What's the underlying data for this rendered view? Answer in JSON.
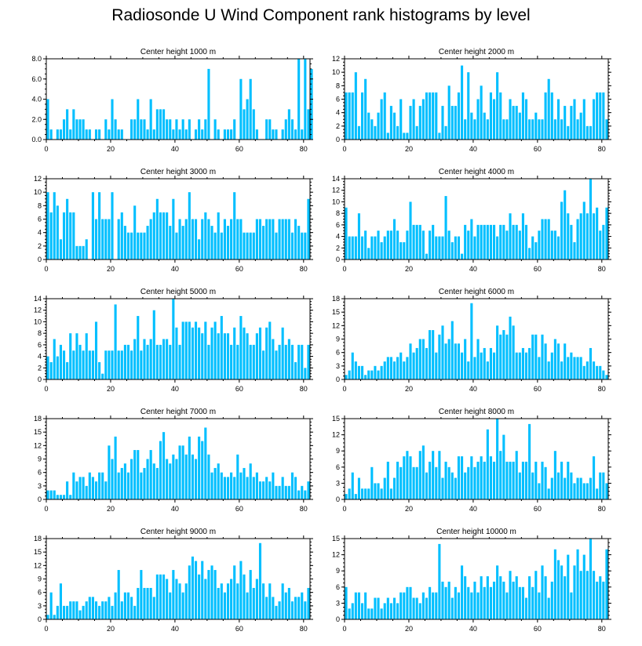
{
  "title": "Radiosonde U Wind Component rank histograms by level",
  "colors": {
    "bar": "#00BFFF",
    "bar_edge": "#ffffff",
    "axis": "#000000"
  },
  "chart_data": [
    {
      "type": "bar",
      "title": "Center height 1000 m",
      "xlabel": "",
      "ylabel": "",
      "xlim": [
        0,
        82
      ],
      "ylim": [
        0,
        8
      ],
      "x_ticks": [
        0,
        20,
        40,
        60,
        80
      ],
      "y_ticks": [
        0,
        2,
        4,
        6,
        8
      ],
      "y_tick_labels": [
        "0.0",
        "2.0",
        "4.0",
        "6.0",
        "8.0"
      ],
      "values": [
        4,
        1,
        0,
        1,
        1,
        2,
        3,
        1,
        3,
        2,
        2,
        2,
        1,
        1,
        0,
        1,
        1,
        0,
        2,
        1,
        4,
        2,
        1,
        1,
        0,
        0,
        2,
        2,
        4,
        2,
        2,
        1,
        4,
        1,
        3,
        3,
        3,
        2,
        2,
        1,
        2,
        1,
        2,
        1,
        2,
        0,
        1,
        2,
        1,
        2,
        7,
        0,
        2,
        1,
        0,
        1,
        1,
        1,
        2,
        0,
        6,
        3,
        4,
        6,
        3,
        1,
        0,
        0,
        2,
        2,
        1,
        1,
        0,
        1,
        2,
        3,
        2,
        1,
        8,
        1,
        8,
        3,
        7
      ]
    },
    {
      "type": "bar",
      "title": "Center height 2000 m",
      "xlabel": "",
      "ylabel": "",
      "xlim": [
        0,
        82
      ],
      "ylim": [
        0,
        12
      ],
      "x_ticks": [
        0,
        20,
        40,
        60,
        80
      ],
      "y_ticks": [
        0,
        2,
        4,
        6,
        8,
        10,
        12
      ],
      "y_tick_labels": [
        "0",
        "2",
        "4",
        "6",
        "8",
        "10",
        "12"
      ],
      "values": [
        7,
        7,
        7,
        10,
        2,
        7,
        9,
        4,
        3,
        2,
        4,
        6,
        7,
        1,
        5,
        4,
        2,
        6,
        1,
        1,
        5,
        6,
        2,
        5,
        6,
        7,
        7,
        7,
        7,
        1,
        5,
        2,
        8,
        5,
        5,
        7,
        11,
        3,
        10,
        4,
        3,
        6,
        8,
        4,
        3,
        7,
        6,
        10,
        7,
        3,
        3,
        6,
        5,
        5,
        4,
        7,
        6,
        3,
        3,
        4,
        3,
        3,
        7,
        9,
        7,
        3,
        6,
        3,
        5,
        2,
        5,
        6,
        3,
        4,
        6,
        2,
        2,
        6,
        7,
        7,
        7,
        3
      ]
    },
    {
      "type": "bar",
      "title": "Center height 3000 m",
      "xlabel": "",
      "ylabel": "",
      "xlim": [
        0,
        82
      ],
      "ylim": [
        0,
        12
      ],
      "x_ticks": [
        0,
        20,
        40,
        60,
        80
      ],
      "y_ticks": [
        0,
        2,
        4,
        6,
        8,
        10,
        12
      ],
      "y_tick_labels": [
        "0",
        "2",
        "4",
        "6",
        "8",
        "10",
        "12"
      ],
      "values": [
        10,
        7,
        10,
        8,
        3,
        7,
        9,
        7,
        7,
        2,
        2,
        2,
        3,
        0,
        10,
        6,
        10,
        6,
        6,
        6,
        10,
        0,
        6,
        7,
        5,
        4,
        4,
        8,
        4,
        4,
        4,
        5,
        6,
        7,
        9,
        7,
        7,
        7,
        5,
        9,
        4,
        6,
        5,
        6,
        10,
        6,
        6,
        3,
        6,
        7,
        6,
        5,
        4,
        7,
        4,
        6,
        5,
        6,
        10,
        6,
        6,
        4,
        4,
        4,
        4,
        6,
        6,
        5,
        6,
        6,
        6,
        4,
        6,
        6,
        6,
        6,
        4,
        6,
        5,
        4,
        4,
        9
      ]
    },
    {
      "type": "bar",
      "title": "Center height 4000 m",
      "xlabel": "",
      "ylabel": "",
      "xlim": [
        0,
        82
      ],
      "ylim": [
        0,
        14
      ],
      "x_ticks": [
        0,
        20,
        40,
        60,
        80
      ],
      "y_ticks": [
        0,
        2,
        4,
        6,
        8,
        10,
        12,
        14
      ],
      "y_tick_labels": [
        "0",
        "2",
        "4",
        "6",
        "8",
        "10",
        "12",
        "14"
      ],
      "values": [
        9,
        4,
        4,
        4,
        8,
        4,
        5,
        2,
        4,
        4,
        5,
        3,
        4,
        5,
        5,
        7,
        5,
        3,
        3,
        5,
        10,
        6,
        6,
        6,
        5,
        1,
        5,
        6,
        4,
        4,
        4,
        11,
        5,
        3,
        4,
        4,
        1,
        6,
        5,
        7,
        4,
        6,
        6,
        6,
        6,
        6,
        6,
        4,
        6,
        6,
        5,
        8,
        6,
        6,
        5,
        8,
        6,
        2,
        4,
        3,
        5,
        7,
        7,
        7,
        5,
        5,
        4,
        10,
        12,
        8,
        6,
        3,
        7,
        8,
        10,
        8,
        14,
        8,
        9,
        5,
        6,
        9
      ]
    },
    {
      "type": "bar",
      "title": "Center height 5000 m",
      "xlabel": "",
      "ylabel": "",
      "xlim": [
        0,
        82
      ],
      "ylim": [
        0,
        14
      ],
      "x_ticks": [
        0,
        20,
        40,
        60,
        80
      ],
      "y_ticks": [
        0,
        2,
        4,
        6,
        8,
        10,
        12,
        14
      ],
      "y_tick_labels": [
        "0",
        "2",
        "4",
        "6",
        "8",
        "10",
        "12",
        "14"
      ],
      "values": [
        4,
        3,
        7,
        4,
        6,
        5,
        3,
        8,
        5,
        8,
        6,
        5,
        8,
        5,
        5,
        10,
        3,
        1,
        5,
        5,
        5,
        13,
        5,
        5,
        6,
        6,
        5,
        7,
        11,
        5,
        7,
        6,
        7,
        12,
        6,
        6,
        7,
        7,
        6,
        14,
        9,
        6,
        10,
        10,
        10,
        9,
        10,
        9,
        8,
        10,
        6,
        9,
        10,
        8,
        11,
        8,
        8,
        6,
        9,
        6,
        11,
        9,
        8,
        6,
        6,
        8,
        9,
        5,
        9,
        10,
        7,
        5,
        6,
        9,
        6,
        7,
        6,
        3,
        6,
        6,
        2,
        6
      ]
    },
    {
      "type": "bar",
      "title": "Center height 6000 m",
      "xlabel": "",
      "ylabel": "",
      "xlim": [
        0,
        82
      ],
      "ylim": [
        0,
        18
      ],
      "x_ticks": [
        0,
        20,
        40,
        60,
        80
      ],
      "y_ticks": [
        0,
        3,
        6,
        9,
        12,
        15,
        18
      ],
      "y_tick_labels": [
        "0",
        "3",
        "6",
        "9",
        "12",
        "15",
        "18"
      ],
      "values": [
        1,
        2,
        6,
        4,
        3,
        3,
        1,
        2,
        2,
        3,
        2,
        3,
        4,
        5,
        5,
        4,
        5,
        6,
        4,
        5,
        8,
        6,
        7,
        9,
        9,
        7,
        11,
        11,
        6,
        10,
        12,
        8,
        9,
        13,
        8,
        8,
        6,
        9,
        4,
        17,
        5,
        9,
        6,
        7,
        4,
        7,
        6,
        12,
        10,
        11,
        10,
        14,
        12,
        6,
        6,
        7,
        6,
        7,
        10,
        10,
        5,
        10,
        8,
        4,
        6,
        9,
        8,
        4,
        8,
        5,
        6,
        5,
        5,
        5,
        3,
        4,
        7,
        4,
        3,
        3,
        2,
        1
      ]
    },
    {
      "type": "bar",
      "title": "Center height 7000 m",
      "xlabel": "",
      "ylabel": "",
      "xlim": [
        0,
        82
      ],
      "ylim": [
        0,
        18
      ],
      "x_ticks": [
        0,
        20,
        40,
        60,
        80
      ],
      "y_ticks": [
        0,
        3,
        6,
        9,
        12,
        15,
        18
      ],
      "y_tick_labels": [
        "0",
        "3",
        "6",
        "9",
        "12",
        "15",
        "18"
      ],
      "values": [
        2,
        2,
        2,
        1,
        1,
        1,
        4,
        1,
        6,
        4,
        5,
        5,
        3,
        6,
        5,
        4,
        6,
        6,
        4,
        12,
        9,
        14,
        6,
        7,
        8,
        6,
        9,
        11,
        11,
        6,
        7,
        9,
        11,
        8,
        7,
        13,
        15,
        9,
        8,
        10,
        9,
        12,
        12,
        10,
        14,
        10,
        9,
        14,
        13,
        16,
        10,
        6,
        7,
        8,
        6,
        5,
        5,
        6,
        5,
        10,
        6,
        7,
        5,
        8,
        5,
        6,
        4,
        4,
        5,
        4,
        6,
        3,
        3,
        5,
        3,
        3,
        6,
        5,
        2,
        3,
        2,
        4
      ]
    },
    {
      "type": "bar",
      "title": "Center height 8000 m",
      "xlabel": "",
      "ylabel": "",
      "xlim": [
        0,
        82
      ],
      "ylim": [
        0,
        15
      ],
      "x_ticks": [
        0,
        20,
        40,
        60,
        80
      ],
      "y_ticks": [
        0,
        3,
        6,
        9,
        12,
        15
      ],
      "y_tick_labels": [
        "0",
        "3",
        "6",
        "9",
        "12",
        "15"
      ],
      "values": [
        1,
        2,
        5,
        1,
        4,
        2,
        2,
        2,
        6,
        3,
        3,
        2,
        4,
        7,
        2,
        4,
        7,
        6,
        8,
        9,
        8,
        6,
        6,
        9,
        10,
        5,
        7,
        9,
        6,
        9,
        4,
        7,
        6,
        5,
        4,
        8,
        8,
        5,
        6,
        8,
        6,
        7,
        8,
        7,
        13,
        8,
        7,
        15,
        9,
        12,
        7,
        7,
        7,
        9,
        5,
        7,
        7,
        14,
        5,
        7,
        3,
        7,
        6,
        2,
        4,
        9,
        5,
        7,
        4,
        7,
        5,
        3,
        4,
        4,
        3,
        3,
        4,
        8,
        2,
        5,
        5,
        3
      ]
    },
    {
      "type": "bar",
      "title": "Center height 9000 m",
      "xlabel": "",
      "ylabel": "",
      "xlim": [
        0,
        82
      ],
      "ylim": [
        0,
        18
      ],
      "x_ticks": [
        0,
        20,
        40,
        60,
        80
      ],
      "y_ticks": [
        0,
        3,
        6,
        9,
        12,
        15,
        18
      ],
      "y_tick_labels": [
        "0",
        "3",
        "6",
        "9",
        "12",
        "15",
        "18"
      ],
      "values": [
        1,
        6,
        1,
        3,
        8,
        3,
        3,
        4,
        4,
        4,
        2,
        3,
        4,
        5,
        5,
        4,
        3,
        4,
        4,
        5,
        3,
        6,
        11,
        4,
        6,
        6,
        5,
        3,
        7,
        11,
        7,
        7,
        7,
        5,
        10,
        10,
        10,
        9,
        6,
        11,
        9,
        8,
        6,
        8,
        12,
        14,
        13,
        10,
        13,
        9,
        11,
        12,
        11,
        7,
        8,
        6,
        8,
        9,
        12,
        8,
        13,
        10,
        6,
        11,
        7,
        9,
        17,
        8,
        5,
        8,
        5,
        3,
        4,
        8,
        6,
        7,
        4,
        5,
        5,
        6,
        4,
        7
      ]
    },
    {
      "type": "bar",
      "title": "Center height 10000 m",
      "xlabel": "",
      "ylabel": "",
      "xlim": [
        0,
        82
      ],
      "ylim": [
        0,
        15
      ],
      "x_ticks": [
        0,
        20,
        40,
        60,
        80
      ],
      "y_ticks": [
        0,
        3,
        6,
        9,
        12,
        15
      ],
      "y_tick_labels": [
        "0",
        "3",
        "6",
        "9",
        "12",
        "15"
      ],
      "values": [
        6,
        2,
        3,
        5,
        5,
        3,
        5,
        2,
        2,
        4,
        4,
        2,
        3,
        4,
        3,
        4,
        3,
        5,
        5,
        6,
        6,
        4,
        4,
        3,
        5,
        4,
        6,
        5,
        5,
        14,
        7,
        6,
        7,
        4,
        6,
        5,
        10,
        8,
        6,
        5,
        7,
        5,
        8,
        6,
        8,
        6,
        7,
        10,
        8,
        7,
        5,
        9,
        7,
        8,
        6,
        6,
        4,
        8,
        6,
        9,
        5,
        10,
        8,
        4,
        7,
        13,
        11,
        10,
        8,
        12,
        5,
        10,
        13,
        9,
        12,
        9,
        15,
        9,
        7,
        8,
        7,
        13
      ]
    }
  ]
}
